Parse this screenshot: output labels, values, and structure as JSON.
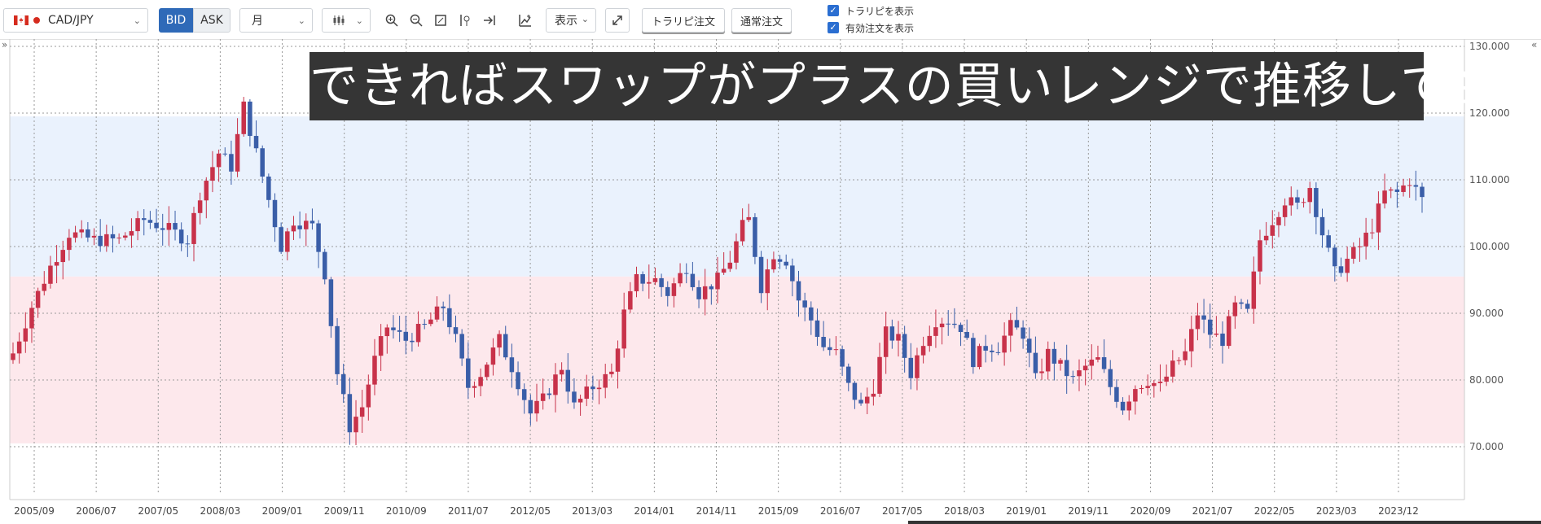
{
  "toolbar": {
    "symbol": "CAD/JPY",
    "bid_label": "BID",
    "ask_label": "ASK",
    "timeframe": "月",
    "display_label": "表示",
    "trarip_order_label": "トラリピ注文",
    "normal_order_label": "通常注文",
    "show_trarip_label": "トラリピを表示",
    "show_active_orders_label": "有効注文を表示",
    "show_trarip_checked": true,
    "show_active_orders_checked": true,
    "icons": [
      "canada-flag-icon",
      "candlestick-icon",
      "zoom-in-icon",
      "zoom-out-icon",
      "fit-icon",
      "crosshair-icon",
      "jump-to-end-icon",
      "indicator-icon",
      "expand-icon"
    ]
  },
  "banner": {
    "text": "できればスワップがプラスの買いレンジで推移して欲しい"
  },
  "chart_data": {
    "type": "candlestick",
    "instrument": "CAD/JPY",
    "timeframe": "月",
    "y_axis": {
      "range": [
        65,
        130
      ],
      "ticks": [
        "130.000",
        "120.000",
        "110.000",
        "100.000",
        "90.000",
        "80.000",
        "70.000"
      ]
    },
    "x_axis": {
      "ticks": [
        "2005/09",
        "2006/07",
        "2007/05",
        "2008/03",
        "2009/01",
        "2009/11",
        "2010/09",
        "2011/07",
        "2012/05",
        "2013/03",
        "2014/01",
        "2014/11",
        "2015/09",
        "2016/07",
        "2017/05",
        "2018/03",
        "2019/01",
        "2019/11",
        "2020/09",
        "2021/07",
        "2022/05",
        "2023/03",
        "2023/12"
      ]
    },
    "grid": true,
    "colors": {
      "up": "#c8324a",
      "down": "#3a5ea8",
      "buy_zone": "#eaf2fd",
      "sell_zone": "#fde8ec",
      "grid": "#9a9a9a"
    },
    "zones": [
      {
        "name": "buy-range",
        "from": 95.5,
        "to": 119.5,
        "color": "#eaf2fd"
      },
      {
        "name": "sell-range",
        "from": 70.5,
        "to": 95.5,
        "color": "#fde8ec"
      }
    ],
    "anchors": [
      {
        "t": 0,
        "v": 84
      },
      {
        "t": 3,
        "v": 91
      },
      {
        "t": 6,
        "v": 97
      },
      {
        "t": 9,
        "v": 102
      },
      {
        "t": 13,
        "v": 101
      },
      {
        "t": 17,
        "v": 101
      },
      {
        "t": 21,
        "v": 104
      },
      {
        "t": 24,
        "v": 103
      },
      {
        "t": 28,
        "v": 101
      },
      {
        "t": 30,
        "v": 108
      },
      {
        "t": 33,
        "v": 114
      },
      {
        "t": 35,
        "v": 112
      },
      {
        "t": 37,
        "v": 121
      },
      {
        "t": 39,
        "v": 114
      },
      {
        "t": 41,
        "v": 107
      },
      {
        "t": 43,
        "v": 100
      },
      {
        "t": 45,
        "v": 104
      },
      {
        "t": 48,
        "v": 103
      },
      {
        "t": 50,
        "v": 96
      },
      {
        "t": 52,
        "v": 81
      },
      {
        "t": 54,
        "v": 73
      },
      {
        "t": 56,
        "v": 76
      },
      {
        "t": 58,
        "v": 83
      },
      {
        "t": 60,
        "v": 88
      },
      {
        "t": 63,
        "v": 86
      },
      {
        "t": 66,
        "v": 88
      },
      {
        "t": 69,
        "v": 91
      },
      {
        "t": 71,
        "v": 86
      },
      {
        "t": 73,
        "v": 79
      },
      {
        "t": 75,
        "v": 81
      },
      {
        "t": 78,
        "v": 86
      },
      {
        "t": 80,
        "v": 82
      },
      {
        "t": 83,
        "v": 75
      },
      {
        "t": 85,
        "v": 77
      },
      {
        "t": 88,
        "v": 82
      },
      {
        "t": 90,
        "v": 76
      },
      {
        "t": 93,
        "v": 79
      },
      {
        "t": 96,
        "v": 81
      },
      {
        "t": 98,
        "v": 90
      },
      {
        "t": 100,
        "v": 95
      },
      {
        "t": 103,
        "v": 95
      },
      {
        "t": 105,
        "v": 93
      },
      {
        "t": 108,
        "v": 97
      },
      {
        "t": 110,
        "v": 93
      },
      {
        "t": 113,
        "v": 95
      },
      {
        "t": 115,
        "v": 98
      },
      {
        "t": 117,
        "v": 103
      },
      {
        "t": 118,
        "v": 104
      },
      {
        "t": 120,
        "v": 94
      },
      {
        "t": 122,
        "v": 99
      },
      {
        "t": 124,
        "v": 98
      },
      {
        "t": 126,
        "v": 92
      },
      {
        "t": 128,
        "v": 89
      },
      {
        "t": 130,
        "v": 85
      },
      {
        "t": 132,
        "v": 84
      },
      {
        "t": 134,
        "v": 79
      },
      {
        "t": 136,
        "v": 76
      },
      {
        "t": 138,
        "v": 79
      },
      {
        "t": 140,
        "v": 87
      },
      {
        "t": 142,
        "v": 86
      },
      {
        "t": 144,
        "v": 81
      },
      {
        "t": 146,
        "v": 86
      },
      {
        "t": 148,
        "v": 89
      },
      {
        "t": 150,
        "v": 89
      },
      {
        "t": 152,
        "v": 88
      },
      {
        "t": 154,
        "v": 83
      },
      {
        "t": 156,
        "v": 85
      },
      {
        "t": 158,
        "v": 85
      },
      {
        "t": 160,
        "v": 88
      },
      {
        "t": 162,
        "v": 87
      },
      {
        "t": 164,
        "v": 80
      },
      {
        "t": 166,
        "v": 84
      },
      {
        "t": 168,
        "v": 82
      },
      {
        "t": 170,
        "v": 80
      },
      {
        "t": 172,
        "v": 82
      },
      {
        "t": 174,
        "v": 83
      },
      {
        "t": 176,
        "v": 79
      },
      {
        "t": 178,
        "v": 76
      },
      {
        "t": 180,
        "v": 79
      },
      {
        "t": 182,
        "v": 80
      },
      {
        "t": 184,
        "v": 79
      },
      {
        "t": 186,
        "v": 82
      },
      {
        "t": 188,
        "v": 84
      },
      {
        "t": 190,
        "v": 90
      },
      {
        "t": 192,
        "v": 87
      },
      {
        "t": 194,
        "v": 86
      },
      {
        "t": 196,
        "v": 91
      },
      {
        "t": 198,
        "v": 90
      },
      {
        "t": 200,
        "v": 101
      },
      {
        "t": 202,
        "v": 104
      },
      {
        "t": 204,
        "v": 107
      },
      {
        "t": 206,
        "v": 106
      },
      {
        "t": 208,
        "v": 109
      },
      {
        "t": 210,
        "v": 102
      },
      {
        "t": 212,
        "v": 96
      },
      {
        "t": 214,
        "v": 98
      },
      {
        "t": 216,
        "v": 100
      },
      {
        "t": 218,
        "v": 103
      },
      {
        "t": 220,
        "v": 108
      },
      {
        "t": 222,
        "v": 108
      },
      {
        "t": 224,
        "v": 110
      },
      {
        "t": 226,
        "v": 107
      }
    ]
  }
}
